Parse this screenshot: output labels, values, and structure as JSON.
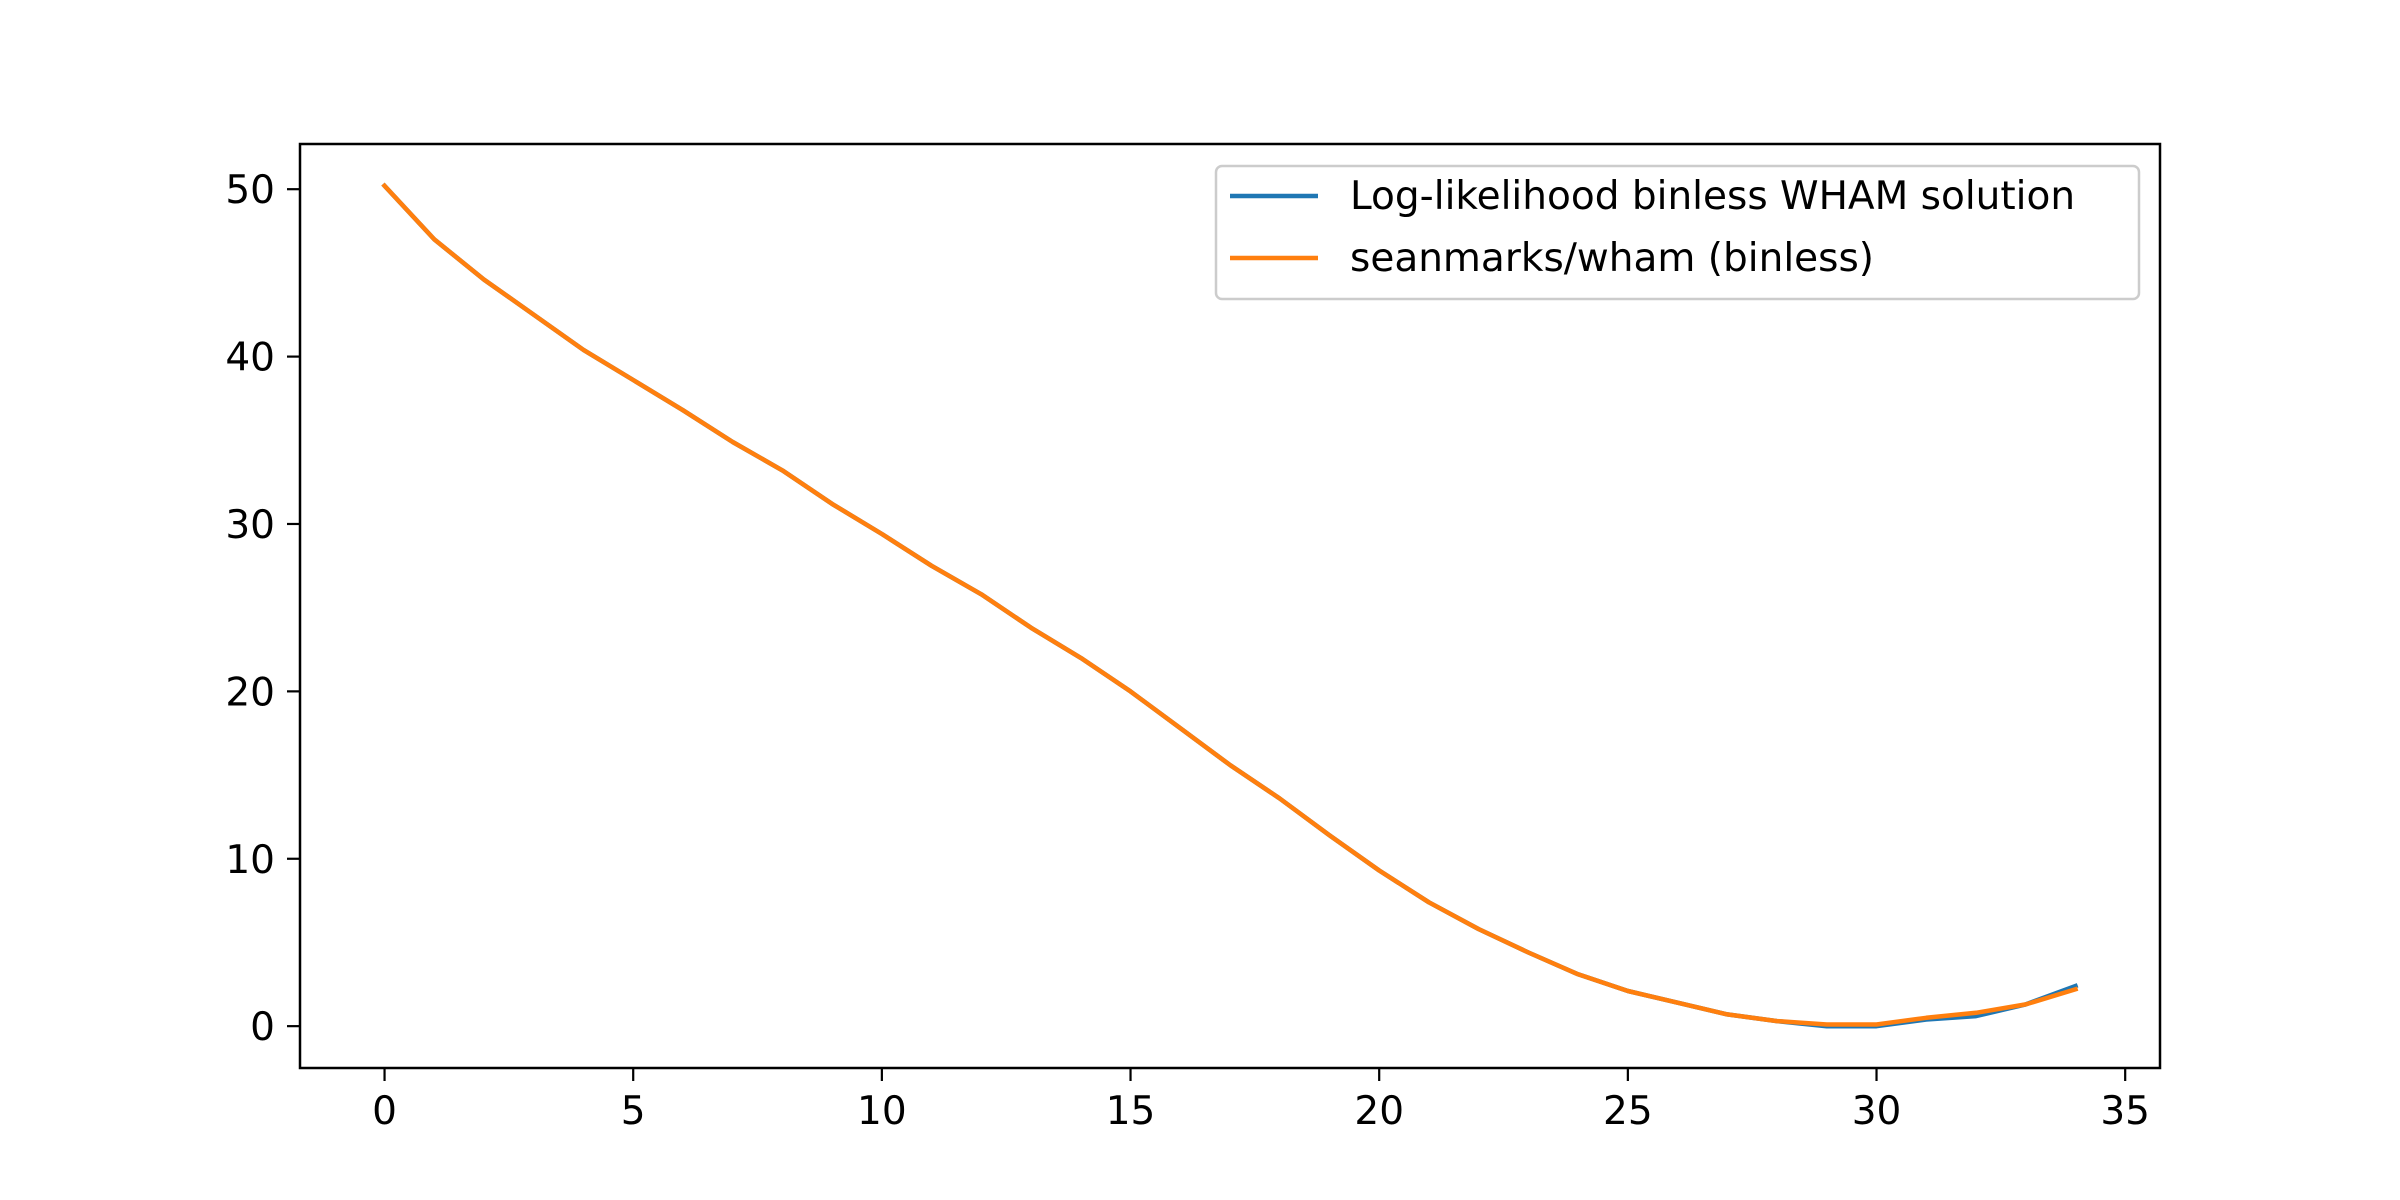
{
  "chart_data": {
    "type": "line",
    "title": "",
    "xlabel": "",
    "ylabel": "",
    "xlim": [
      -1.7,
      35.7
    ],
    "ylim": [
      -2.5,
      52.7
    ],
    "xticks": [
      0,
      5,
      10,
      15,
      20,
      25,
      30,
      35
    ],
    "yticks": [
      0,
      10,
      20,
      30,
      40,
      50
    ],
    "grid": false,
    "legend": {
      "placement": "top-right"
    },
    "x": [
      0,
      1,
      2,
      3,
      4,
      5,
      6,
      7,
      8,
      9,
      10,
      11,
      12,
      13,
      14,
      15,
      16,
      17,
      18,
      19,
      20,
      21,
      22,
      23,
      24,
      25,
      26,
      27,
      28,
      29,
      30,
      31,
      32,
      33,
      34
    ],
    "series": [
      {
        "name": "Log-likelihood binless WHAM solution",
        "color": "#1f77b4",
        "values": [
          50.2,
          47.0,
          44.6,
          42.5,
          40.4,
          38.6,
          36.8,
          34.9,
          33.2,
          31.2,
          29.4,
          27.5,
          25.8,
          23.8,
          22.0,
          20.0,
          17.8,
          15.6,
          13.6,
          11.4,
          9.3,
          7.4,
          5.8,
          4.4,
          3.1,
          2.1,
          1.4,
          0.7,
          0.3,
          0.0,
          0.0,
          0.4,
          0.6,
          1.3,
          2.4
        ]
      },
      {
        "name": "seanmarks/wham (binless)",
        "color": "#ff7f0e",
        "values": [
          50.2,
          47.0,
          44.6,
          42.5,
          40.4,
          38.6,
          36.8,
          34.9,
          33.2,
          31.2,
          29.4,
          27.5,
          25.8,
          23.8,
          22.0,
          20.0,
          17.8,
          15.6,
          13.6,
          11.4,
          9.3,
          7.4,
          5.8,
          4.4,
          3.1,
          2.1,
          1.4,
          0.7,
          0.3,
          0.1,
          0.1,
          0.5,
          0.8,
          1.3,
          2.2
        ]
      }
    ]
  }
}
